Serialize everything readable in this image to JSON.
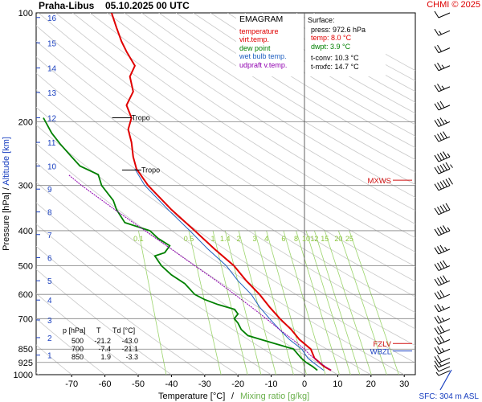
{
  "header": {
    "station": "Praha-Libus",
    "datetime": "05.10.2025 00 UTC",
    "credit": "CHMI © 2025"
  },
  "legend": {
    "title": "EMAGRAM",
    "items": [
      {
        "label": "temperature",
        "color": "#e00000"
      },
      {
        "label": "virt.temp.",
        "color": "#e00000"
      },
      {
        "label": "dew point",
        "color": "#008000"
      },
      {
        "label": "wet bulb temp.",
        "color": "#2060c0"
      },
      {
        "label": "udpraft v.temp.",
        "color": "#9000b0"
      }
    ]
  },
  "surface": {
    "title": "Surface:",
    "lines": [
      {
        "text": "press: 972.6 hPa",
        "color": "#000000"
      },
      {
        "text": "temp: 8.0 °C",
        "color": "#e00000"
      },
      {
        "text": "dwpt: 3.9 °C",
        "color": "#008000"
      },
      {
        "text": "t-conv: 10.3 °C",
        "color": "#000000"
      },
      {
        "text": "t-mxfc: 14.7 °C",
        "color": "#000000"
      }
    ]
  },
  "table": {
    "headers": [
      "p [hPa]",
      "T",
      "Td [°C]"
    ],
    "rows": [
      [
        "500",
        "-21.2",
        "-43.0"
      ],
      [
        "700",
        "-7.4",
        "-21.1"
      ],
      [
        "850",
        "1.9",
        "-3.3"
      ]
    ]
  },
  "footer": {
    "xlabel_temp": "Temperature [°C]",
    "xlabel_sep": "/",
    "xlabel_mix": "Mixing ratio [g/kg]",
    "sfc": "SFC: 304 m ASL"
  },
  "labels": {
    "tropo": "Tropo",
    "mxws": "MXWS",
    "fzlv": "FZLV",
    "wbzl": "WBZL"
  },
  "chart_data": {
    "type": "line",
    "xlabel": "Temperature [°C]",
    "ylabel": "Pressure [hPa] / Altitude [km]",
    "x_ticks": [
      -70,
      -60,
      -50,
      -40,
      -30,
      -20,
      -10,
      0,
      10,
      20,
      30
    ],
    "y_ticks": [
      100,
      200,
      300,
      400,
      500,
      600,
      700,
      850,
      925,
      1000
    ],
    "altitude_ticks": [
      {
        "km": 1,
        "p": 883
      },
      {
        "km": 2,
        "p": 790
      },
      {
        "km": 3,
        "p": 706
      },
      {
        "km": 4,
        "p": 622
      },
      {
        "km": 5,
        "p": 550
      },
      {
        "km": 6,
        "p": 475
      },
      {
        "km": 7,
        "p": 410
      },
      {
        "km": 8,
        "p": 355
      },
      {
        "km": 9,
        "p": 307
      },
      {
        "km": 10,
        "p": 265
      },
      {
        "km": 11,
        "p": 228
      },
      {
        "km": 12,
        "p": 195
      },
      {
        "km": 13,
        "p": 166
      },
      {
        "km": 14,
        "p": 142
      },
      {
        "km": 15,
        "p": 121
      },
      {
        "km": 16,
        "p": 103
      }
    ],
    "mixing_ratio_labels": [
      "0.1",
      "0.5",
      "1",
      "1.4",
      "2",
      "3",
      "4",
      "6",
      "8",
      "10",
      "12",
      "15",
      "20",
      "25"
    ],
    "series": [
      {
        "name": "temperature",
        "color": "#e00000",
        "points": [
          [
            972.6,
            8.0
          ],
          [
            950,
            6.0
          ],
          [
            925,
            4.5
          ],
          [
            900,
            3.0
          ],
          [
            850,
            1.9
          ],
          [
            800,
            -1.5
          ],
          [
            750,
            -4.0
          ],
          [
            700,
            -7.4
          ],
          [
            650,
            -10.5
          ],
          [
            600,
            -13.5
          ],
          [
            550,
            -17.5
          ],
          [
            500,
            -21.2
          ],
          [
            450,
            -27.0
          ],
          [
            400,
            -33.0
          ],
          [
            350,
            -40.0
          ],
          [
            300,
            -47.0
          ],
          [
            270,
            -50.5
          ],
          [
            250,
            -51.5
          ],
          [
            228,
            -52.0
          ],
          [
            210,
            -53.0
          ],
          [
            195,
            -52.0
          ],
          [
            180,
            -53.5
          ],
          [
            165,
            -51.5
          ],
          [
            150,
            -52.5
          ],
          [
            140,
            -51.0
          ],
          [
            128,
            -53.5
          ],
          [
            120,
            -55.0
          ],
          [
            110,
            -56.5
          ],
          [
            100,
            -58.0
          ]
        ]
      },
      {
        "name": "dew point",
        "color": "#008000",
        "points": [
          [
            972.6,
            3.9
          ],
          [
            950,
            2.5
          ],
          [
            925,
            0.5
          ],
          [
            900,
            -1.0
          ],
          [
            850,
            -3.3
          ],
          [
            830,
            -7.0
          ],
          [
            800,
            -13.0
          ],
          [
            780,
            -17.0
          ],
          [
            750,
            -19.0
          ],
          [
            720,
            -20.0
          ],
          [
            700,
            -21.1
          ],
          [
            680,
            -20.0
          ],
          [
            660,
            -21.0
          ],
          [
            640,
            -26.0
          ],
          [
            620,
            -30.0
          ],
          [
            600,
            -33.0
          ],
          [
            560,
            -36.0
          ],
          [
            530,
            -40.0
          ],
          [
            500,
            -43.0
          ],
          [
            470,
            -45.0
          ],
          [
            460,
            -42.0
          ],
          [
            440,
            -40.5
          ],
          [
            420,
            -44.0
          ],
          [
            400,
            -46.5
          ],
          [
            380,
            -54.0
          ],
          [
            350,
            -56.5
          ],
          [
            330,
            -57.5
          ],
          [
            300,
            -61.0
          ],
          [
            280,
            -62.0
          ],
          [
            265,
            -67.5
          ],
          [
            250,
            -70.0
          ],
          [
            230,
            -73.5
          ],
          [
            215,
            -76.0
          ],
          [
            195,
            -78.5
          ]
        ]
      },
      {
        "name": "wet bulb temp.",
        "color": "#2060c0",
        "points": [
          [
            972.6,
            5.8
          ],
          [
            925,
            2.6
          ],
          [
            900,
            1.0
          ],
          [
            850,
            -0.8
          ],
          [
            800,
            -4.5
          ],
          [
            750,
            -7.5
          ],
          [
            700,
            -10.5
          ],
          [
            650,
            -13.5
          ],
          [
            600,
            -16.0
          ],
          [
            550,
            -20.0
          ],
          [
            500,
            -23.5
          ],
          [
            450,
            -29.0
          ],
          [
            400,
            -34.5
          ],
          [
            350,
            -41.0
          ],
          [
            300,
            -48.0
          ],
          [
            270,
            -51.0
          ]
        ]
      },
      {
        "name": "udpraft v.temp.",
        "color": "#9000b0",
        "points": [
          [
            972.6,
            8.0
          ],
          [
            925,
            4.5
          ],
          [
            880,
            1.5
          ],
          [
            850,
            0.0
          ],
          [
            800,
            -3.5
          ],
          [
            750,
            -7.5
          ],
          [
            700,
            -11.5
          ],
          [
            650,
            -16.0
          ],
          [
            600,
            -21.0
          ],
          [
            550,
            -26.5
          ],
          [
            500,
            -33.0
          ],
          [
            450,
            -40.0
          ],
          [
            400,
            -48.0
          ],
          [
            350,
            -57.0
          ],
          [
            300,
            -67.0
          ],
          [
            280,
            -71.0
          ]
        ]
      }
    ],
    "tropopause": [
      {
        "p": 195,
        "t": -53
      },
      {
        "p": 272,
        "t": -50
      }
    ],
    "markers": [
      {
        "label": "MXWS",
        "p": 290
      },
      {
        "label": "FZLV",
        "p": 820
      },
      {
        "label": "WBZL",
        "p": 860
      }
    ],
    "wind_barbs": [
      {
        "p": 975,
        "speed": 5
      },
      {
        "p": 950,
        "speed": 10
      },
      {
        "p": 925,
        "speed": 15
      },
      {
        "p": 900,
        "speed": 20
      },
      {
        "p": 850,
        "speed": 25
      },
      {
        "p": 800,
        "speed": 30
      },
      {
        "p": 750,
        "speed": 30
      },
      {
        "p": 700,
        "speed": 25
      },
      {
        "p": 650,
        "speed": 25
      },
      {
        "p": 600,
        "speed": 30
      },
      {
        "p": 550,
        "speed": 40
      },
      {
        "p": 500,
        "speed": 40
      },
      {
        "p": 450,
        "speed": 35
      },
      {
        "p": 400,
        "speed": 45
      },
      {
        "p": 350,
        "speed": 50
      },
      {
        "p": 300,
        "speed": 60
      },
      {
        "p": 270,
        "speed": 55
      },
      {
        "p": 250,
        "speed": 45
      },
      {
        "p": 220,
        "speed": 40
      },
      {
        "p": 200,
        "speed": 35
      },
      {
        "p": 180,
        "speed": 30
      },
      {
        "p": 160,
        "speed": 25
      },
      {
        "p": 140,
        "speed": 25
      },
      {
        "p": 125,
        "speed": 20
      },
      {
        "p": 112,
        "speed": 15
      },
      {
        "p": 100,
        "speed": 10
      }
    ]
  }
}
